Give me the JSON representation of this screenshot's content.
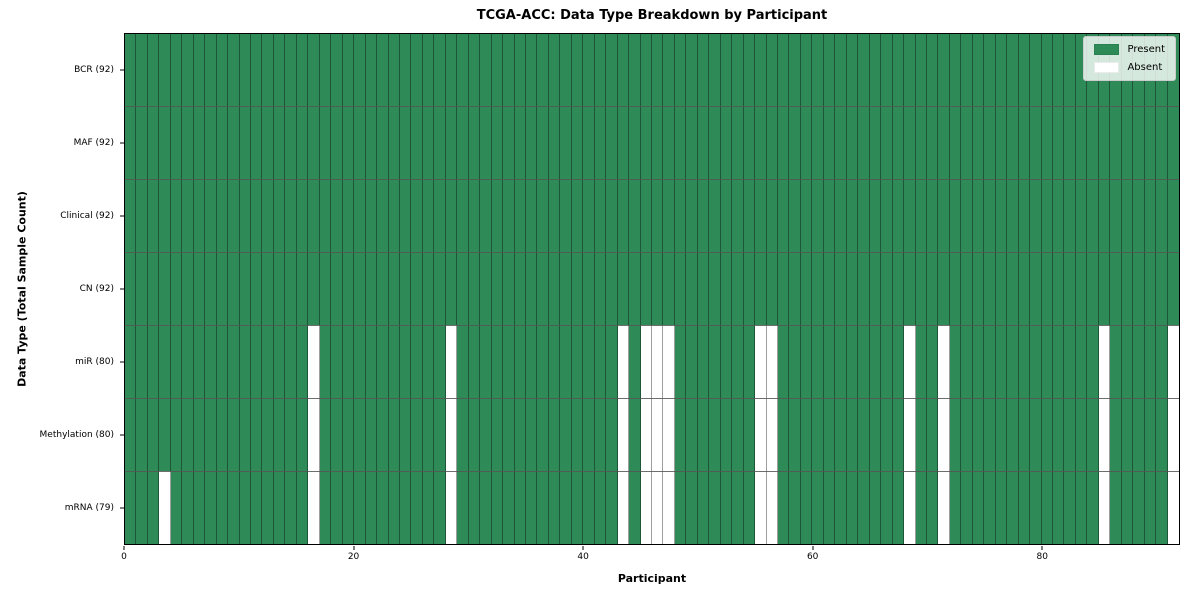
{
  "title": "TCGA-ACC: Data Type Breakdown by Participant",
  "chart_data": {
    "type": "heatmap",
    "title": "TCGA-ACC: Data Type Breakdown by Participant",
    "xlabel": "Participant",
    "ylabel": "Data Type (Total Sample Count)",
    "n_participants": 92,
    "x_ticks": [
      0,
      20,
      40,
      60,
      80
    ],
    "legend_position": "upper right",
    "grid_edges": true,
    "legend": [
      {
        "label": "Present",
        "color": "#2e8b57"
      },
      {
        "label": "Absent",
        "color": "#ffffff"
      }
    ],
    "colors": {
      "present": "#2e8b57",
      "absent": "#ffffff",
      "cell_edge": "rgba(0,0,0,0.38)",
      "row_separator": "rgba(85,85,85,0.85)",
      "spine": "#000000"
    },
    "rows": [
      {
        "label": "BCR (92)",
        "data_type": "BCR",
        "total_samples": 92,
        "absent_participants": []
      },
      {
        "label": "MAF (92)",
        "data_type": "MAF",
        "total_samples": 92,
        "absent_participants": []
      },
      {
        "label": "Clinical (92)",
        "data_type": "Clinical",
        "total_samples": 92,
        "absent_participants": []
      },
      {
        "label": "CN (92)",
        "data_type": "CN",
        "total_samples": 92,
        "absent_participants": []
      },
      {
        "label": "miR (80)",
        "data_type": "miR",
        "total_samples": 80,
        "absent_participants": [
          16,
          28,
          43,
          45,
          46,
          47,
          55,
          56,
          68,
          71,
          85,
          91
        ]
      },
      {
        "label": "Methylation (80)",
        "data_type": "Methylation",
        "total_samples": 80,
        "absent_participants": [
          16,
          28,
          43,
          45,
          46,
          47,
          55,
          56,
          68,
          71,
          85,
          91
        ]
      },
      {
        "label": "mRNA (79)",
        "data_type": "mRNA",
        "total_samples": 79,
        "absent_participants": [
          3,
          16,
          28,
          43,
          45,
          46,
          47,
          55,
          56,
          68,
          71,
          85,
          91
        ]
      }
    ]
  }
}
